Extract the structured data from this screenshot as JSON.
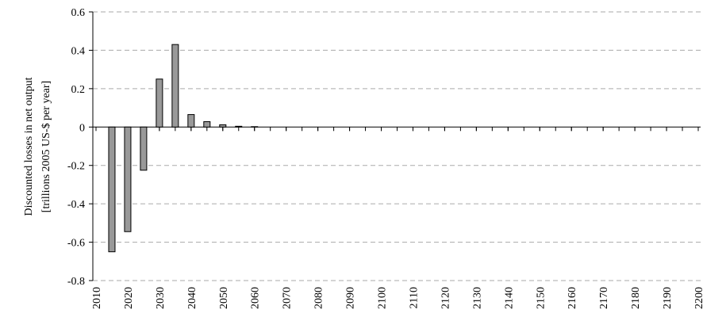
{
  "chart_data": {
    "type": "bar",
    "y_label": [
      "Discounted losses in net output",
      "[trillions 2005 US-$ per year]"
    ],
    "x": [
      2015,
      2020,
      2025,
      2030,
      2035,
      2040,
      2045,
      2050,
      2055,
      2060,
      2065,
      2070,
      2075,
      2080,
      2085,
      2090,
      2095,
      2100,
      2105,
      2110,
      2115,
      2120,
      2125,
      2130,
      2135,
      2140,
      2145,
      2150,
      2155,
      2160,
      2165,
      2170,
      2175,
      2180,
      2185,
      2190,
      2195,
      2200
    ],
    "values": [
      -0.65,
      -0.545,
      -0.225,
      0.25,
      0.43,
      0.065,
      0.028,
      0.012,
      0.004,
      0.002,
      0,
      0,
      0,
      0,
      0,
      0,
      0,
      0,
      0,
      0,
      0,
      0,
      0,
      0,
      0,
      0,
      0,
      0,
      0,
      0,
      0,
      0,
      0,
      0,
      0,
      0,
      0,
      0
    ],
    "color": "#999999",
    "xlim": [
      2010,
      2200
    ],
    "xticks": [
      2010,
      2020,
      2030,
      2040,
      2050,
      2060,
      2070,
      2080,
      2090,
      2100,
      2110,
      2120,
      2130,
      2140,
      2150,
      2160,
      2170,
      2180,
      2190,
      2200
    ],
    "ylim": [
      -0.8,
      0.6
    ],
    "yticks": [
      -0.8,
      -0.6,
      -0.4,
      -0.2,
      0,
      0.2,
      0.4,
      0.6
    ],
    "grid": true
  }
}
